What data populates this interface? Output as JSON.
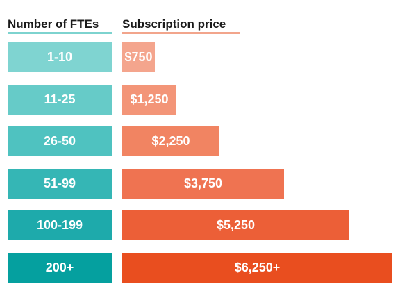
{
  "header": {
    "left": "Number of FTEs",
    "right": "Subscription price"
  },
  "chart_data": {
    "type": "bar",
    "orientation": "horizontal",
    "categories": [
      "1-10",
      "11-25",
      "26-50",
      "51-99",
      "100-199",
      "200+"
    ],
    "values": [
      750,
      1250,
      2250,
      3750,
      5250,
      6250
    ],
    "labels": [
      "$750",
      "$1,250",
      "$2,250",
      "$3,750",
      "$5,250",
      "$6,250+"
    ],
    "xlim": [
      0,
      6250
    ],
    "grid": false,
    "tier_colors": [
      "#7fd4d1",
      "#66cbc8",
      "#4fc2c0",
      "#35b6b5",
      "#1eaaab",
      "#05a09f"
    ],
    "bar_colors": [
      "#f4a58d",
      "#f39578",
      "#f18462",
      "#ef7351",
      "#ec5f37",
      "#e94e1f"
    ]
  }
}
